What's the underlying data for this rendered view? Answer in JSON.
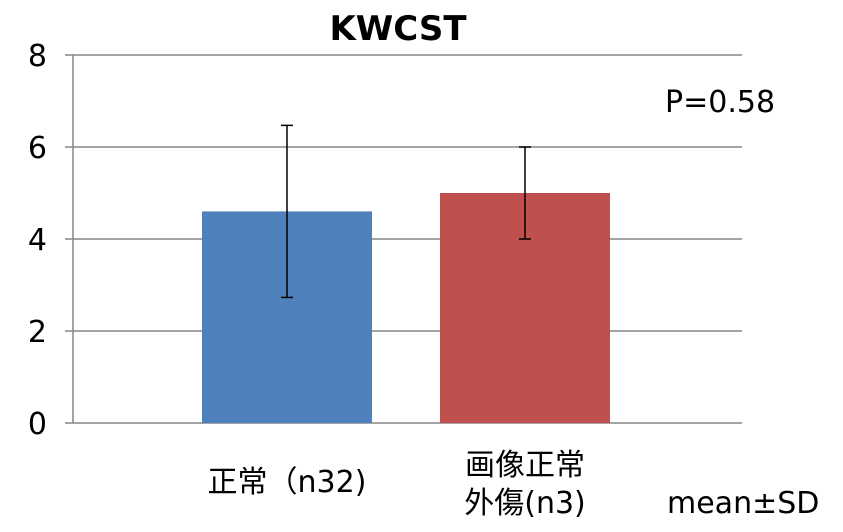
{
  "chart_data": {
    "type": "bar",
    "title": "KWCST",
    "categories": [
      "正常（n32)",
      "画像正常\n外傷(n3)"
    ],
    "values": [
      4.6,
      5.0
    ],
    "error_sd": [
      1.87,
      1.0
    ],
    "colors": [
      "#4f81bd",
      "#c0504d"
    ],
    "ylim": [
      0,
      8
    ],
    "yticks": [
      0,
      2,
      4,
      6,
      8
    ],
    "grid": true,
    "xlabel": "",
    "ylabel": "",
    "annotations": {
      "p_value": "P=0.58",
      "note": "mean±SD"
    }
  }
}
